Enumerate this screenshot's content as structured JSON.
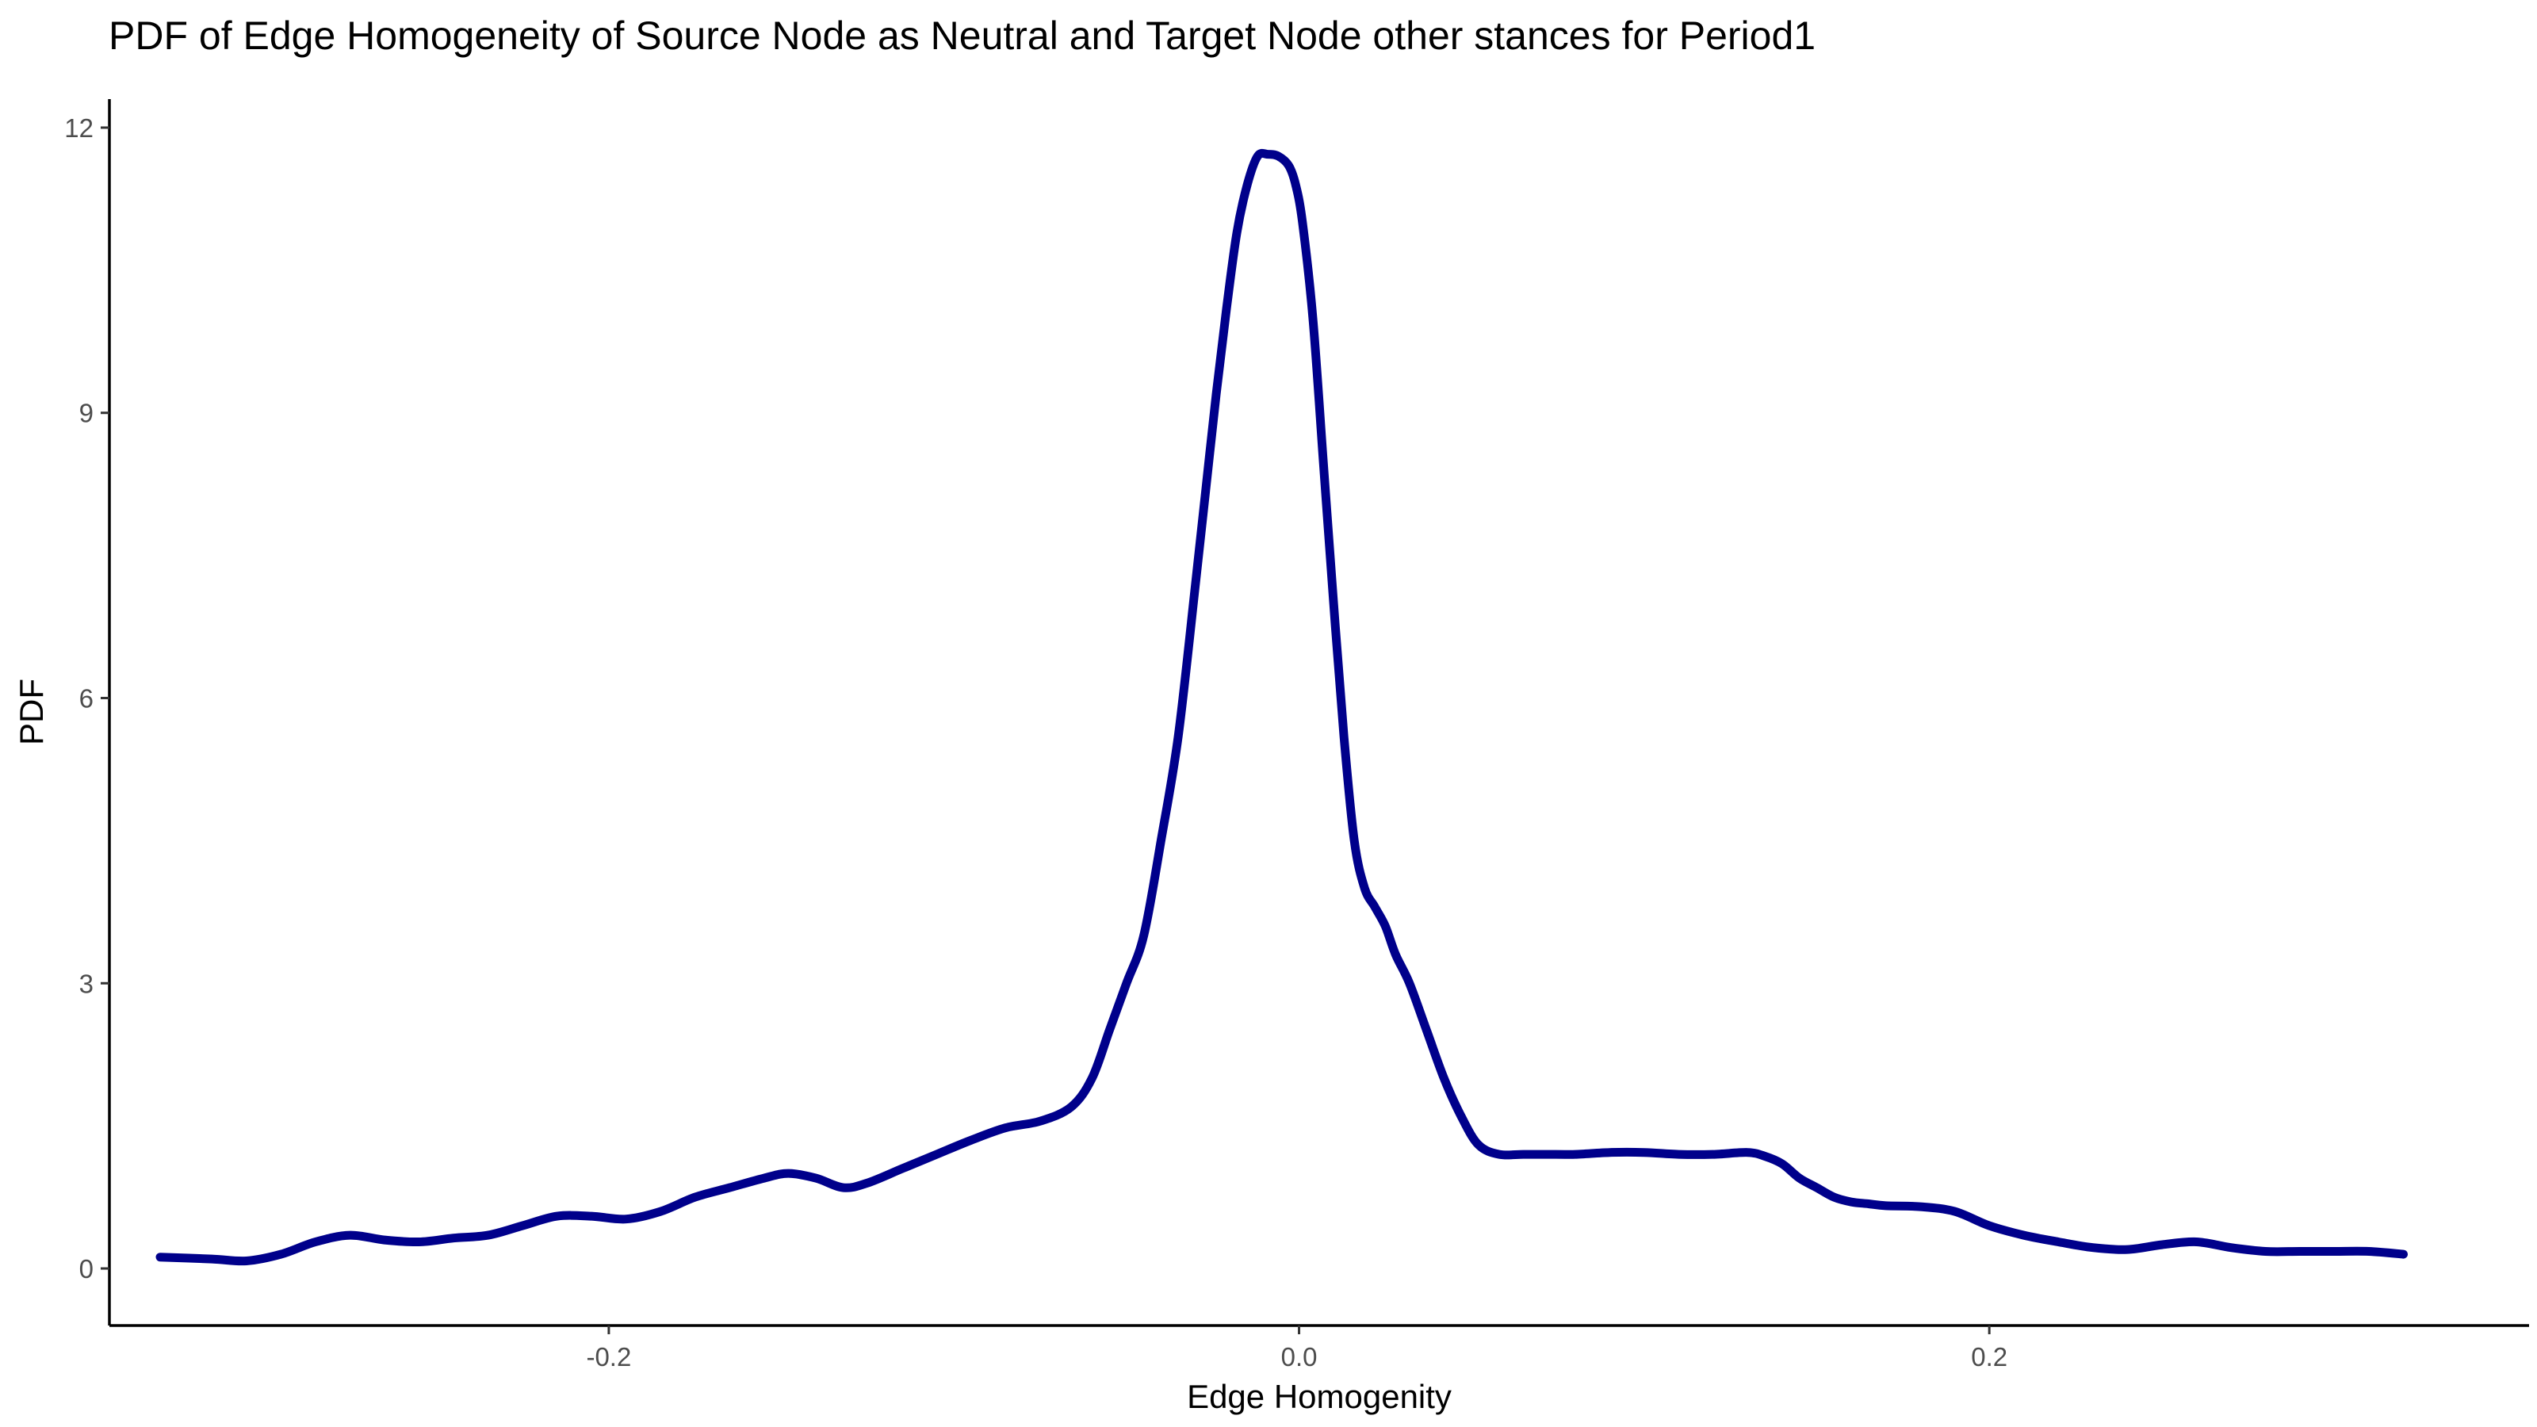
{
  "chart_data": {
    "type": "line",
    "title": "PDF of Edge Homogeneity of Source Node as Neutral and Target Node other stances for Period1",
    "xlabel": "Edge Homogenity",
    "ylabel": "PDF",
    "xlim": [
      -0.3447,
      0.3564
    ],
    "ylim": [
      -0.6,
      12.3
    ],
    "x_ticks": [
      -0.2,
      0.0,
      0.2
    ],
    "x_tick_labels": [
      "-0.2",
      "0.0",
      "0.2"
    ],
    "y_ticks": [
      0,
      3,
      6,
      9,
      12
    ],
    "y_tick_labels": [
      "0",
      "3",
      "6",
      "9",
      "12"
    ],
    "grid": false,
    "legend": "none",
    "line_color": "#00008B",
    "series": [
      {
        "x": [
          -0.33,
          -0.315,
          -0.305,
          -0.295,
          -0.285,
          -0.275,
          -0.265,
          -0.255,
          -0.245,
          -0.235,
          -0.225,
          -0.215,
          -0.205,
          -0.195,
          -0.185,
          -0.175,
          -0.165,
          -0.155,
          -0.148,
          -0.14,
          -0.132,
          -0.125,
          -0.115,
          -0.105,
          -0.095,
          -0.085,
          -0.075,
          -0.066,
          -0.06,
          -0.055,
          -0.05,
          -0.045,
          -0.04,
          -0.035,
          -0.03,
          -0.027,
          -0.024,
          -0.021,
          -0.018,
          -0.015,
          -0.012,
          -0.009,
          -0.006,
          -0.003,
          -0.001,
          0.001,
          0.004,
          0.007,
          0.01,
          0.013,
          0.016,
          0.019,
          0.022,
          0.025,
          0.028,
          0.032,
          0.037,
          0.042,
          0.047,
          0.052,
          0.058,
          0.065,
          0.072,
          0.08,
          0.09,
          0.1,
          0.11,
          0.12,
          0.13,
          0.135,
          0.14,
          0.145,
          0.15,
          0.155,
          0.16,
          0.165,
          0.17,
          0.18,
          0.19,
          0.2,
          0.21,
          0.22,
          0.23,
          0.24,
          0.25,
          0.26,
          0.27,
          0.28,
          0.29,
          0.3,
          0.31,
          0.32
        ],
        "y": [
          0.12,
          0.1,
          0.08,
          0.15,
          0.28,
          0.35,
          0.3,
          0.28,
          0.32,
          0.35,
          0.45,
          0.55,
          0.55,
          0.52,
          0.6,
          0.75,
          0.85,
          0.95,
          1.0,
          0.95,
          0.85,
          0.9,
          1.05,
          1.2,
          1.35,
          1.48,
          1.55,
          1.7,
          2.0,
          2.5,
          3.0,
          3.5,
          4.5,
          5.6,
          7.2,
          8.2,
          9.2,
          10.1,
          10.9,
          11.4,
          11.7,
          11.72,
          11.7,
          11.6,
          11.4,
          11.0,
          10.0,
          8.5,
          7.0,
          5.6,
          4.5,
          4.0,
          3.8,
          3.6,
          3.3,
          3.0,
          2.5,
          2.0,
          1.6,
          1.3,
          1.2,
          1.2,
          1.2,
          1.2,
          1.22,
          1.22,
          1.2,
          1.2,
          1.22,
          1.18,
          1.1,
          0.95,
          0.85,
          0.75,
          0.7,
          0.68,
          0.66,
          0.65,
          0.6,
          0.45,
          0.35,
          0.28,
          0.22,
          0.2,
          0.25,
          0.28,
          0.22,
          0.18,
          0.18,
          0.18,
          0.18,
          0.15
        ]
      }
    ]
  }
}
